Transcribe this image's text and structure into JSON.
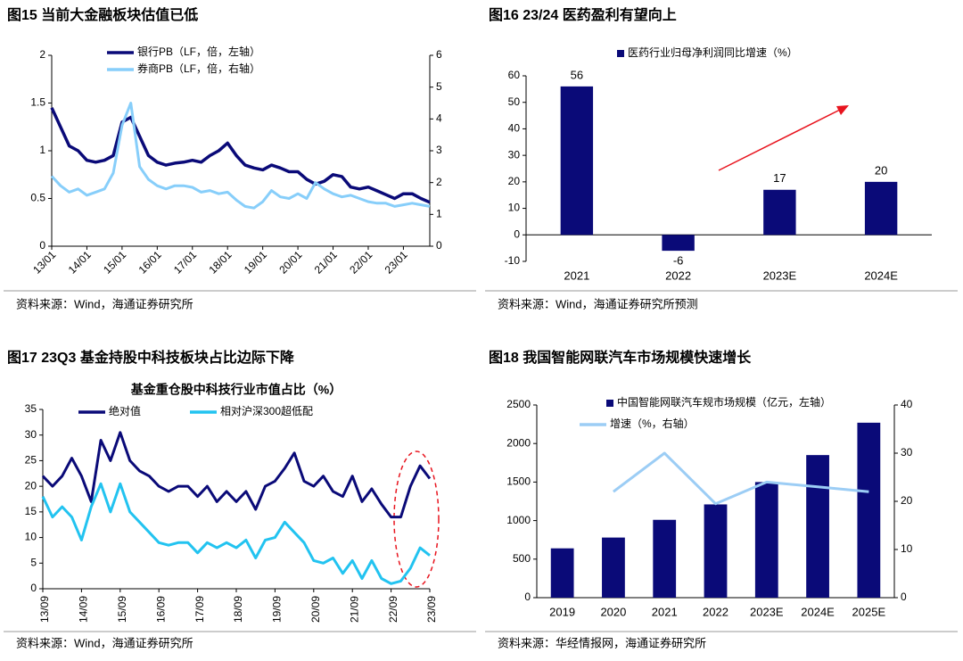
{
  "chart_data": [
    {
      "type": "line",
      "title": "图15 当前大金融板块估值已低",
      "source": "资料来源：Wind，海通证券研究所",
      "x": [
        "13/01",
        "13/04",
        "13/07",
        "13/10",
        "14/01",
        "14/04",
        "14/07",
        "14/10",
        "15/01",
        "15/04",
        "15/07",
        "15/10",
        "16/01",
        "16/04",
        "16/07",
        "16/10",
        "17/01",
        "17/04",
        "17/07",
        "17/10",
        "18/01",
        "18/04",
        "18/07",
        "18/10",
        "19/01",
        "19/04",
        "19/07",
        "19/10",
        "20/01",
        "20/04",
        "20/07",
        "20/10",
        "21/01",
        "21/04",
        "21/07",
        "21/10",
        "22/01",
        "22/04",
        "22/07",
        "22/10",
        "23/01",
        "23/04",
        "23/07",
        "23/10"
      ],
      "xticks": [
        "13/01",
        "14/01",
        "15/01",
        "16/01",
        "17/01",
        "18/01",
        "19/01",
        "20/01",
        "21/01",
        "22/01",
        "23/01"
      ],
      "ylim": [
        0,
        2
      ],
      "yticks": [
        0,
        0.5,
        1,
        1.5,
        2
      ],
      "y2lim": [
        0,
        6
      ],
      "y2ticks": [
        0,
        1,
        2,
        3,
        4,
        5,
        6
      ],
      "series": [
        {
          "name": "银行PB（LF，倍，左轴）",
          "color": "#0a0a78",
          "values": [
            1.45,
            1.25,
            1.05,
            1.0,
            0.9,
            0.88,
            0.9,
            0.95,
            1.3,
            1.35,
            1.15,
            0.95,
            0.88,
            0.85,
            0.87,
            0.88,
            0.9,
            0.88,
            0.95,
            1.0,
            1.08,
            0.95,
            0.85,
            0.82,
            0.8,
            0.85,
            0.82,
            0.78,
            0.78,
            0.7,
            0.65,
            0.68,
            0.75,
            0.73,
            0.62,
            0.6,
            0.62,
            0.58,
            0.54,
            0.5,
            0.55,
            0.55,
            0.5,
            0.46
          ]
        },
        {
          "name": "券商PB（LF，倍，右轴）",
          "color": "#87cefa",
          "axis": "y2",
          "values": [
            2.2,
            1.9,
            1.7,
            1.8,
            1.6,
            1.7,
            1.8,
            2.3,
            3.8,
            4.5,
            2.5,
            2.1,
            1.9,
            1.8,
            1.9,
            1.9,
            1.85,
            1.7,
            1.75,
            1.65,
            1.7,
            1.45,
            1.25,
            1.2,
            1.4,
            1.75,
            1.55,
            1.5,
            1.65,
            1.5,
            2.0,
            1.8,
            1.65,
            1.55,
            1.6,
            1.5,
            1.4,
            1.35,
            1.35,
            1.25,
            1.3,
            1.35,
            1.3,
            1.25
          ]
        }
      ]
    },
    {
      "type": "bar",
      "title": "图16 23/24 医药盈利有望向上",
      "source": "资料来源：Wind，海通证券研究所预测",
      "categories": [
        "2021",
        "2022",
        "2023E",
        "2024E"
      ],
      "ylim": [
        -10,
        60
      ],
      "yticks": [
        -10,
        0,
        10,
        20,
        30,
        40,
        50,
        60
      ],
      "data_labels": true,
      "series": [
        {
          "name": "医药行业归母净利润同比增速（%）",
          "color": "#0a0a78",
          "values": [
            56,
            -6,
            17,
            20
          ]
        }
      ]
    },
    {
      "type": "line",
      "title": "图17 23Q3 基金持股中科技板块占比边际下降",
      "subtitle": "基金重仓股中科技行业市值占比（%）",
      "source": "资料来源：Wind，海通证券研究所",
      "x": [
        "13/09",
        "13/12",
        "14/03",
        "14/06",
        "14/09",
        "14/12",
        "15/03",
        "15/06",
        "15/09",
        "15/12",
        "16/03",
        "16/06",
        "16/09",
        "16/12",
        "17/03",
        "17/06",
        "17/09",
        "17/12",
        "18/03",
        "18/06",
        "18/09",
        "18/12",
        "19/03",
        "19/06",
        "19/09",
        "19/12",
        "20/03",
        "20/06",
        "20/09",
        "20/12",
        "21/03",
        "21/06",
        "21/09",
        "21/12",
        "22/03",
        "22/06",
        "22/09",
        "22/12",
        "23/03",
        "23/06",
        "23/09"
      ],
      "xticks": [
        "13/09",
        "14/09",
        "15/09",
        "16/09",
        "17/09",
        "18/09",
        "19/09",
        "20/09",
        "21/09",
        "22/09",
        "23/09"
      ],
      "ylim": [
        0,
        35
      ],
      "yticks": [
        0,
        5,
        10,
        15,
        20,
        25,
        30,
        35
      ],
      "series": [
        {
          "name": "绝对值",
          "color": "#0a0a78",
          "values": [
            22,
            20,
            22,
            25.5,
            22,
            17,
            29,
            25,
            30.5,
            25,
            23,
            22,
            20,
            19,
            20,
            20,
            18,
            20,
            17,
            19,
            17,
            19,
            15.5,
            20,
            21,
            23.5,
            26.5,
            21,
            20,
            22,
            19,
            18,
            22,
            17,
            19.5,
            16.5,
            14,
            14,
            20,
            24,
            21.5
          ]
        },
        {
          "name": "相对沪深300超低配",
          "color": "#22c3f0",
          "values": [
            18,
            14,
            16,
            14,
            9.5,
            16,
            20.5,
            15,
            20.5,
            15,
            13,
            11,
            9,
            8.5,
            9,
            9,
            7,
            9,
            8,
            9,
            8,
            9.5,
            6,
            9.5,
            10,
            13,
            11,
            9,
            5.5,
            5,
            6,
            3,
            5.5,
            2,
            5.5,
            2,
            1,
            1.5,
            4,
            8,
            6.5
          ]
        }
      ]
    },
    {
      "type": "bar",
      "title": "图18 我国智能网联汽车市场规模快速增长",
      "source": "资料来源：华经情报网，海通证券研究所",
      "categories": [
        "2019",
        "2020",
        "2021",
        "2022",
        "2023E",
        "2024E",
        "2025E"
      ],
      "ylim": [
        0,
        2500
      ],
      "yticks": [
        0,
        500,
        1000,
        1500,
        2000,
        2500
      ],
      "y2lim": [
        0,
        40
      ],
      "y2ticks": [
        0,
        10,
        20,
        30,
        40
      ],
      "series": [
        {
          "name": "中国智能网联汽车规市场规模（亿元，左轴）",
          "color": "#0a0a78",
          "values": [
            640,
            780,
            1010,
            1210,
            1500,
            1850,
            2270
          ]
        },
        {
          "name": "增速（%，右轴）",
          "color": "#9ccdf5",
          "type": "line",
          "axis": "y2",
          "values": [
            null,
            22,
            30,
            19.5,
            24,
            23,
            22
          ]
        }
      ]
    }
  ]
}
